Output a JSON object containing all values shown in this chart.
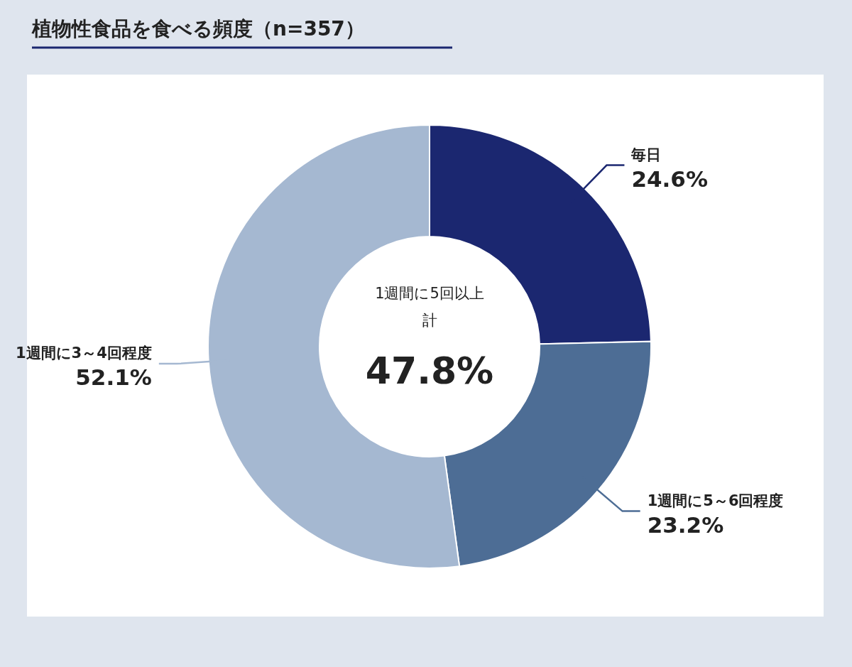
{
  "chart_data": {
    "type": "donut",
    "title": "植物性食品を食べる頻度（n=357）",
    "categories": [
      "毎日",
      "1週間に5～6回程度",
      "1週間に3～4回程度"
    ],
    "values": [
      24.6,
      23.2,
      52.1
    ],
    "colors": [
      "#1b2770",
      "#4d6d95",
      "#a5b8d1"
    ],
    "value_labels": [
      "24.6%",
      "23.2%",
      "52.1%"
    ],
    "annotations": [
      "1週間に5回以上",
      "計",
      "47.8%"
    ]
  }
}
